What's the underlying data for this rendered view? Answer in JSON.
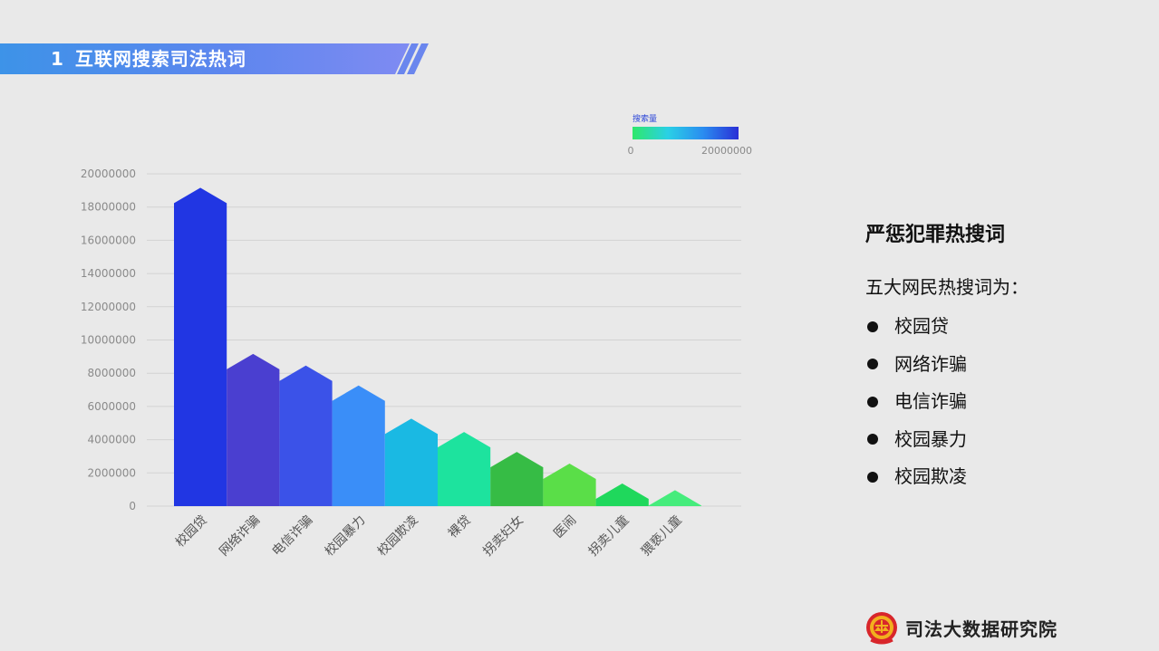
{
  "header": {
    "number": "1",
    "title": "互联网搜索司法热词"
  },
  "side": {
    "title": "严惩犯罪热搜词",
    "intro": "五大网民热搜词为：",
    "items": [
      "校园贷",
      "网络诈骗",
      "电信诈骗",
      "校园暴力",
      "校园欺凌"
    ]
  },
  "footer": {
    "org": "司法大数据研究院"
  },
  "chart_data": {
    "type": "bar",
    "categories": [
      "校园贷",
      "网络诈骗",
      "电信诈骗",
      "校园暴力",
      "校园欺凌",
      "裸贷",
      "拐卖妇女",
      "医闹",
      "拐卖儿童",
      "猥亵儿童"
    ],
    "values": [
      18700000,
      8700000,
      8000000,
      6800000,
      4800000,
      4000000,
      2800000,
      2100000,
      900000,
      500000
    ],
    "colors": [
      "#2136e3",
      "#4a3fd0",
      "#3b52e8",
      "#3a8ef8",
      "#1ab9e3",
      "#1de39e",
      "#36bc45",
      "#5ade48",
      "#1fd85c",
      "#45ec7c"
    ],
    "ylim": [
      0,
      20000000
    ],
    "yticks": [
      "0",
      "2000000",
      "4000000",
      "6000000",
      "8000000",
      "10000000",
      "12000000",
      "14000000",
      "16000000",
      "18000000",
      "20000000"
    ],
    "grid": true,
    "legend": {
      "title": "搜索量",
      "min_label": "0",
      "max_label": "20000000",
      "gradient": [
        "#2ee86a",
        "#2ad0e6",
        "#2a8cf0",
        "#2a2fd6"
      ],
      "position": "top-right"
    }
  }
}
